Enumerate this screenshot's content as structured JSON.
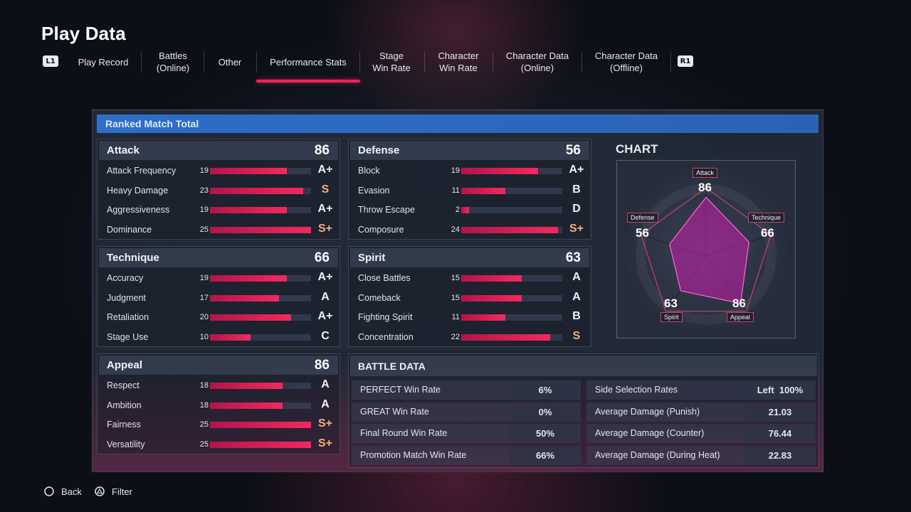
{
  "header": {
    "title": "Play Data"
  },
  "tabs": {
    "left_button": "L1",
    "right_button": "R1",
    "items": [
      {
        "label": "Play Record"
      },
      {
        "label": "Battles\n(Online)"
      },
      {
        "label": "Other"
      },
      {
        "label": "Performance Stats",
        "active": true
      },
      {
        "label": "Stage\nWin Rate"
      },
      {
        "label": "Character\nWin Rate"
      },
      {
        "label": "Character Data\n(Online)"
      },
      {
        "label": "Character Data\n(Offline)"
      }
    ]
  },
  "panel": {
    "header": "Ranked Match Total"
  },
  "colors": {
    "accent": "#e8265a",
    "grade_a": "#eef0f6",
    "grade_s": "#f4b083",
    "header_blue": "#2d6ec8"
  },
  "groups": [
    {
      "name": "Attack",
      "score": "86",
      "stats": [
        {
          "label": "Attack Frequency",
          "value": "19",
          "grade": "A+"
        },
        {
          "label": "Heavy Damage",
          "value": "23",
          "grade": "S"
        },
        {
          "label": "Aggressiveness",
          "value": "19",
          "grade": "A+"
        },
        {
          "label": "Dominance",
          "value": "25",
          "grade": "S+"
        }
      ]
    },
    {
      "name": "Defense",
      "score": "56",
      "stats": [
        {
          "label": "Block",
          "value": "19",
          "grade": "A+"
        },
        {
          "label": "Evasion",
          "value": "11",
          "grade": "B"
        },
        {
          "label": "Throw Escape",
          "value": "2",
          "grade": "D"
        },
        {
          "label": "Composure",
          "value": "24",
          "grade": "S+"
        }
      ]
    },
    {
      "name": "Technique",
      "score": "66",
      "stats": [
        {
          "label": "Accuracy",
          "value": "19",
          "grade": "A+"
        },
        {
          "label": "Judgment",
          "value": "17",
          "grade": "A"
        },
        {
          "label": "Retaliation",
          "value": "20",
          "grade": "A+"
        },
        {
          "label": "Stage Use",
          "value": "10",
          "grade": "C"
        }
      ]
    },
    {
      "name": "Spirit",
      "score": "63",
      "stats": [
        {
          "label": "Close Battles",
          "value": "15",
          "grade": "A"
        },
        {
          "label": "Comeback",
          "value": "15",
          "grade": "A"
        },
        {
          "label": "Fighting Spirit",
          "value": "11",
          "grade": "B"
        },
        {
          "label": "Concentration",
          "value": "22",
          "grade": "S"
        }
      ]
    },
    {
      "name": "Appeal",
      "score": "86",
      "stats": [
        {
          "label": "Respect",
          "value": "18",
          "grade": "A"
        },
        {
          "label": "Ambition",
          "value": "18",
          "grade": "A"
        },
        {
          "label": "Fairness",
          "value": "25",
          "grade": "S+"
        },
        {
          "label": "Versatility",
          "value": "25",
          "grade": "S+"
        }
      ]
    }
  ],
  "chart": {
    "title": "CHART",
    "axes": [
      {
        "label": "Attack",
        "value": "86"
      },
      {
        "label": "Technique",
        "value": "66"
      },
      {
        "label": "Appeal",
        "value": "86"
      },
      {
        "label": "Spirit",
        "value": "63"
      },
      {
        "label": "Defense",
        "value": "56"
      }
    ]
  },
  "battle_data": {
    "title": "BATTLE DATA",
    "left": [
      {
        "label": "PERFECT Win Rate",
        "value": "6%"
      },
      {
        "label": "GREAT Win Rate",
        "value": "0%"
      },
      {
        "label": "Final Round Win Rate",
        "value": "50%"
      },
      {
        "label": "Promotion Match Win Rate",
        "value": "66%"
      }
    ],
    "right": [
      {
        "label": "Side Selection Rates",
        "value": "Left  100%"
      },
      {
        "label": "Average Damage (Punish)",
        "value": "21.03"
      },
      {
        "label": "Average Damage (Counter)",
        "value": "76.44"
      },
      {
        "label": "Average Damage (During Heat)",
        "value": "22.83"
      }
    ]
  },
  "footer": {
    "back_label": "Back",
    "filter_label": "Filter"
  }
}
